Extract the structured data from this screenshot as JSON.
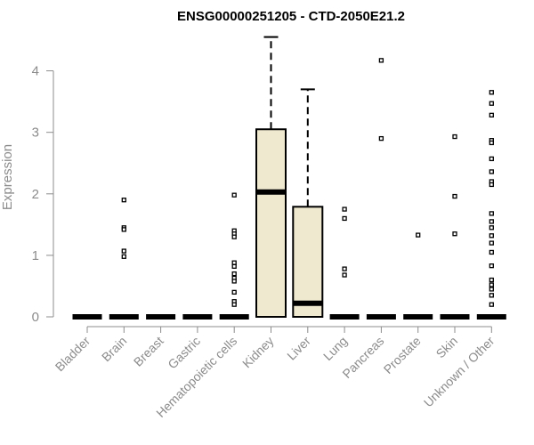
{
  "chart_data": {
    "type": "boxplot",
    "title": "ENSG00000251205 - CTD-2050E21.2",
    "ylabel": "Expression",
    "xlabel": "",
    "ylim": [
      0,
      4.5
    ],
    "yticks": [
      0,
      1,
      2,
      3,
      4
    ],
    "grid": false,
    "box_fill": "#efe9cf",
    "axis_color": "#8c8c8c",
    "categories": [
      "Bladder",
      "Brain",
      "Breast",
      "Gastric",
      "Hematopoietic cells",
      "Kidney",
      "Liver",
      "Lung",
      "Pancreas",
      "Prostate",
      "Skin",
      "Unknown / Other"
    ],
    "boxes": [
      {
        "category": "Bladder",
        "q1": 0,
        "median": 0,
        "q3": 0,
        "whisker_low": 0,
        "whisker_high": 0,
        "outliers": []
      },
      {
        "category": "Brain",
        "q1": 0,
        "median": 0,
        "q3": 0,
        "whisker_low": 0,
        "whisker_high": 0,
        "outliers": [
          1.9,
          1.45,
          1.42,
          1.07,
          0.98
        ]
      },
      {
        "category": "Breast",
        "q1": 0,
        "median": 0,
        "q3": 0,
        "whisker_low": 0,
        "whisker_high": 0,
        "outliers": []
      },
      {
        "category": "Gastric",
        "q1": 0,
        "median": 0,
        "q3": 0,
        "whisker_low": 0,
        "whisker_high": 0,
        "outliers": []
      },
      {
        "category": "Hematopoietic cells",
        "q1": 0,
        "median": 0,
        "q3": 0,
        "whisker_low": 0,
        "whisker_high": 0,
        "outliers": [
          1.98,
          1.4,
          1.35,
          1.3,
          0.88,
          0.82,
          0.7,
          0.63,
          0.58,
          0.4,
          0.25,
          0.2
        ]
      },
      {
        "category": "Kidney",
        "q1": 0,
        "median": 2.03,
        "q3": 3.05,
        "whisker_low": 0,
        "whisker_high": 4.55,
        "outliers": []
      },
      {
        "category": "Liver",
        "q1": 0,
        "median": 0.22,
        "q3": 1.79,
        "whisker_low": 0,
        "whisker_high": 3.7,
        "outliers": []
      },
      {
        "category": "Lung",
        "q1": 0,
        "median": 0,
        "q3": 0,
        "whisker_low": 0,
        "whisker_high": 0,
        "outliers": [
          1.75,
          1.6,
          0.78,
          0.68
        ]
      },
      {
        "category": "Pancreas",
        "q1": 0,
        "median": 0,
        "q3": 0,
        "whisker_low": 0,
        "whisker_high": 0,
        "outliers": [
          4.17,
          2.9
        ]
      },
      {
        "category": "Prostate",
        "q1": 0,
        "median": 0,
        "q3": 0,
        "whisker_low": 0,
        "whisker_high": 0,
        "outliers": [
          1.33
        ]
      },
      {
        "category": "Skin",
        "q1": 0,
        "median": 0,
        "q3": 0,
        "whisker_low": 0,
        "whisker_high": 0,
        "outliers": [
          2.93,
          1.96,
          1.35
        ]
      },
      {
        "category": "Unknown / Other",
        "q1": 0,
        "median": 0,
        "q3": 0,
        "whisker_low": 0,
        "whisker_high": 0,
        "outliers": [
          3.65,
          3.47,
          3.28,
          2.87,
          2.83,
          2.57,
          2.36,
          2.2,
          2.15,
          1.68,
          1.55,
          1.45,
          1.32,
          1.2,
          1.05,
          0.83,
          0.6,
          0.52,
          0.45,
          0.35,
          0.2
        ]
      }
    ]
  }
}
